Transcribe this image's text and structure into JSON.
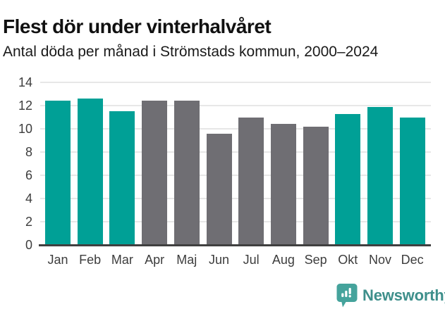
{
  "title": "Flest dör under vinterhalvåret",
  "subtitle": "Antal döda per månad i Strömstads kommun, 2000–2024",
  "chart_data": {
    "type": "bar",
    "title": "Flest dör under vinterhalvåret",
    "subtitle": "Antal döda per månad i Strömstads kommun, 2000–2024",
    "categories": [
      "Jan",
      "Feb",
      "Mar",
      "Apr",
      "Maj",
      "Jun",
      "Jul",
      "Aug",
      "Sep",
      "Okt",
      "Nov",
      "Dec"
    ],
    "values": [
      12.4,
      12.6,
      11.5,
      12.4,
      12.4,
      9.6,
      11.0,
      10.4,
      10.2,
      11.3,
      11.9,
      11.0
    ],
    "bar_colors": [
      "teal",
      "teal",
      "teal",
      "gray",
      "gray",
      "gray",
      "gray",
      "gray",
      "gray",
      "teal",
      "teal",
      "teal"
    ],
    "colors": {
      "teal": "#00a096",
      "gray": "#6f6e73"
    },
    "xlabel": "",
    "ylabel": "",
    "ylim": [
      0,
      14
    ],
    "yticks": [
      0,
      2,
      4,
      6,
      8,
      10,
      12,
      14
    ],
    "grid": true,
    "legend": false
  },
  "footer": {
    "brand": "Newsworthy",
    "logo_icon": "bar-chart-speech-bubble"
  },
  "colors": {
    "accent_teal": "#00a096",
    "neutral_gray": "#6f6e73",
    "gridline": "#e7e7e7",
    "axis": "#404040",
    "logo_icon": "#45a39c",
    "logo_text": "#3e8f8b"
  }
}
